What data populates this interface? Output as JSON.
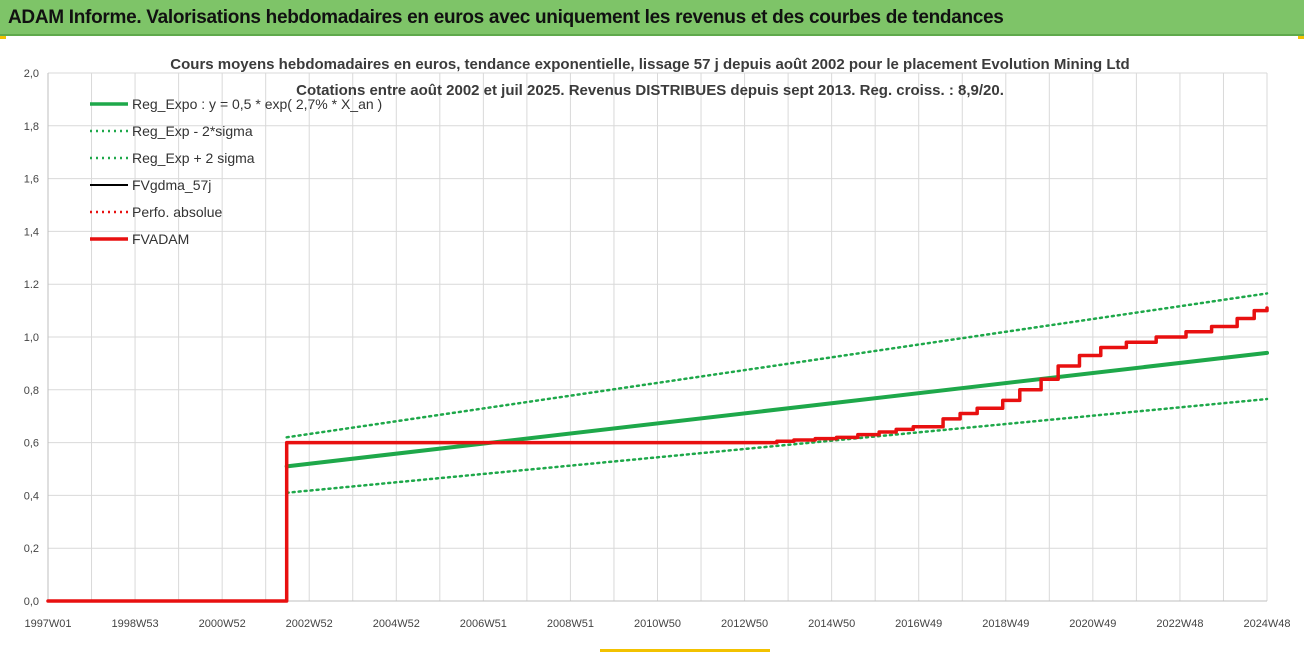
{
  "banner": {
    "title": "ADAM Informe. Valorisations hebdomadaires en euros avec uniquement les revenus et des courbes de tendances"
  },
  "colors": {
    "banner_bg": "#7ec468",
    "reg_expo": "#1ea84a",
    "sigma": "#1ea84a",
    "fvgdma": "#000000",
    "perfo": "#e81010",
    "fvadam": "#e81010",
    "grid": "#d9d9d9"
  },
  "chart_data": {
    "type": "line",
    "title": "Cours moyens hebdomadaires en euros, tendance exponentielle, lissage 57 j depuis août 2002 pour le placement Evolution Mining Ltd",
    "subtitle": "Cotations entre août 2002 et juil 2025. Revenus DISTRIBUES depuis sept 2013. Reg. croiss. : 8,9/20.",
    "xlabel": "",
    "ylabel": "",
    "x_ticks": [
      "1997W01",
      "1998W53",
      "2000W52",
      "2002W52",
      "2004W52",
      "2006W51",
      "2008W51",
      "2010W50",
      "2012W50",
      "2014W50",
      "2016W49",
      "2018W49",
      "2020W49",
      "2022W48",
      "2024W48"
    ],
    "x_range": [
      1997.0,
      2025.6
    ],
    "y_ticks": [
      "0,0",
      "0,2",
      "0,4",
      "0,6",
      "0,8",
      "1,0",
      "1.2",
      "1,4",
      "1,6",
      "1,8",
      "2,0"
    ],
    "ylim": [
      0,
      2
    ],
    "grid": true,
    "legend_position": "top-left",
    "series": [
      {
        "name": "Reg_Expo : y = 0,5 * exp( 2,7% *  X_an )",
        "style": "solid-thick",
        "color": "#1ea84a",
        "points": [
          [
            2002.6,
            0.51
          ],
          [
            2025.6,
            0.94
          ]
        ]
      },
      {
        "name": "Reg_Exp - 2*sigma",
        "style": "dotted",
        "color": "#1ea84a",
        "points": [
          [
            2002.6,
            0.41
          ],
          [
            2025.6,
            0.765
          ]
        ]
      },
      {
        "name": "Reg_Exp + 2 sigma",
        "style": "dotted",
        "color": "#1ea84a",
        "points": [
          [
            2002.6,
            0.62
          ],
          [
            2025.6,
            1.165
          ]
        ]
      },
      {
        "name": "FVgdma_57j",
        "style": "solid",
        "color": "#000000",
        "points": [
          [
            1997.0,
            0.0
          ],
          [
            2002.6,
            0.0
          ],
          [
            2002.6,
            0.6
          ],
          [
            2013.7,
            0.6
          ],
          [
            2014.5,
            0.61
          ],
          [
            2015.5,
            0.62
          ],
          [
            2016.5,
            0.64
          ],
          [
            2017.3,
            0.66
          ],
          [
            2018.0,
            0.69
          ],
          [
            2018.8,
            0.73
          ],
          [
            2019.4,
            0.76
          ],
          [
            2019.8,
            0.8
          ],
          [
            2020.3,
            0.84
          ],
          [
            2020.7,
            0.89
          ],
          [
            2021.2,
            0.93
          ],
          [
            2021.7,
            0.96
          ],
          [
            2022.3,
            0.98
          ],
          [
            2023.0,
            1.0
          ],
          [
            2023.7,
            1.02
          ],
          [
            2024.3,
            1.04
          ],
          [
            2024.9,
            1.07
          ],
          [
            2025.3,
            1.1
          ],
          [
            2025.6,
            1.11
          ]
        ]
      },
      {
        "name": "Perfo. absolue",
        "style": "dotted",
        "color": "#e81010",
        "points": []
      },
      {
        "name": "FVADAM",
        "style": "solid-thick-steps",
        "color": "#e81010",
        "points": [
          [
            1997.0,
            0.0
          ],
          [
            2002.6,
            0.0
          ],
          [
            2002.6,
            0.6
          ],
          [
            2013.7,
            0.6
          ],
          [
            2014.5,
            0.61
          ],
          [
            2015.5,
            0.62
          ],
          [
            2016.5,
            0.64
          ],
          [
            2017.3,
            0.66
          ],
          [
            2018.0,
            0.69
          ],
          [
            2018.8,
            0.73
          ],
          [
            2019.4,
            0.76
          ],
          [
            2019.8,
            0.8
          ],
          [
            2020.3,
            0.84
          ],
          [
            2020.7,
            0.89
          ],
          [
            2021.2,
            0.93
          ],
          [
            2021.7,
            0.96
          ],
          [
            2022.3,
            0.98
          ],
          [
            2023.0,
            1.0
          ],
          [
            2023.7,
            1.02
          ],
          [
            2024.3,
            1.04
          ],
          [
            2024.9,
            1.07
          ],
          [
            2025.3,
            1.1
          ],
          [
            2025.6,
            1.11
          ]
        ]
      }
    ]
  }
}
